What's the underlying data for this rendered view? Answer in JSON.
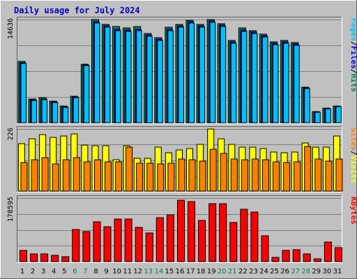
{
  "colors": {
    "background": "#c0c0c0",
    "panel": "#c0c0c0",
    "hits": "#00805c",
    "files": "#0000ff",
    "pages": "#00c0ff",
    "visits": "#ffff00",
    "sites": "#ff8000",
    "kbytes": "#ff0000",
    "weekend": "#00805c",
    "weekday": "#000000",
    "title": "#0000c0"
  },
  "chart_data": {
    "type": "bar",
    "title": "Daily usage for July 2024",
    "categories": [
      "1",
      "2",
      "3",
      "4",
      "5",
      "6",
      "7",
      "8",
      "9",
      "10",
      "11",
      "12",
      "13",
      "14",
      "15",
      "16",
      "17",
      "18",
      "19",
      "20",
      "21",
      "22",
      "23",
      "24",
      "25",
      "26",
      "27",
      "28",
      "29",
      "30",
      "31"
    ],
    "weekend_days": [
      "6",
      "7",
      "13",
      "14",
      "20",
      "21",
      "27",
      "28"
    ],
    "panels": [
      {
        "id": "hits-files-pages",
        "ymax_label": "14636",
        "ymax": 14636,
        "legend": [
          {
            "text": "Hits",
            "color_key": "hits"
          },
          {
            "text": "/",
            "color_key": "weekday"
          },
          {
            "text": "Files",
            "color_key": "files"
          },
          {
            "text": "/",
            "color_key": "weekday"
          },
          {
            "text": "Pages",
            "color_key": "pages"
          }
        ],
        "series": [
          {
            "name": "Hits",
            "color_key": "hits",
            "values": [
              8700,
              3400,
              3600,
              3100,
              2400,
              3800,
              8300,
              14636,
              13900,
              13600,
              13400,
              13600,
              12700,
              12100,
              13500,
              13900,
              14500,
              13900,
              14600,
              14000,
              11700,
              13400,
              13100,
              12600,
              11500,
              11700,
              11400,
              5000,
              1600,
              2100,
              2400
            ]
          },
          {
            "name": "Files",
            "color_key": "files",
            "values": [
              8500,
              3300,
              3400,
              3000,
              2300,
              3700,
              8200,
              14300,
              13700,
              13300,
              13200,
              13300,
              12500,
              11900,
              13300,
              13700,
              14300,
              13700,
              14400,
              13800,
              11500,
              13200,
              12900,
              12400,
              11300,
              11500,
              11200,
              4900,
              1550,
              2000,
              2300
            ]
          },
          {
            "name": "Pages",
            "color_key": "pages",
            "values": [
              8400,
              3200,
              3300,
              2900,
              2200,
              3600,
              8100,
              14100,
              13500,
              13100,
              13000,
              13100,
              12300,
              11700,
              13100,
              13500,
              14100,
              13500,
              14200,
              13600,
              11300,
              13000,
              12700,
              12200,
              11100,
              11300,
              11000,
              4800,
              1500,
              1950,
              2250
            ]
          }
        ]
      },
      {
        "id": "visits-sites",
        "ymax_label": "226",
        "ymax": 226,
        "legend": [
          {
            "text": "Visits",
            "color_key": "visits"
          },
          {
            "text": "/",
            "color_key": "weekday"
          },
          {
            "text": "Sites",
            "color_key": "sites"
          }
        ],
        "series": [
          {
            "name": "Visits",
            "color_key": "visits",
            "values": [
              172,
              191,
              205,
              196,
              201,
              208,
              168,
              164,
              164,
              114,
              166,
              120,
              120,
              161,
              140,
              150,
              154,
              169,
              226,
              190,
              171,
              161,
              159,
              154,
              143,
              140,
              141,
              176,
              161,
              161,
              200
            ]
          },
          {
            "name": "Sites",
            "color_key": "sites",
            "values": [
              105,
              114,
              123,
              99,
              113,
              123,
              106,
              115,
              106,
              106,
              159,
              102,
              102,
              98,
              101,
              116,
              115,
              108,
              153,
              137,
              116,
              115,
              116,
              115,
              106,
              105,
              106,
              163,
              118,
              110,
              116
            ]
          }
        ]
      },
      {
        "id": "kbytes",
        "ymax_label": "178595",
        "ymax": 178595,
        "legend": [
          {
            "text": "KBytes",
            "color_key": "kbytes"
          }
        ],
        "series": [
          {
            "name": "KBytes",
            "color_key": "kbytes",
            "values": [
              31000,
              21000,
              21000,
              18000,
              13000,
              90000,
              84000,
              112000,
              98000,
              120000,
              120000,
              96000,
              80000,
              123000,
              131000,
              173000,
              169000,
              115000,
              162000,
              163000,
              110000,
              147000,
              140000,
              72000,
              12000,
              32000,
              33000,
              22000,
              7000,
              55000,
              40000
            ]
          }
        ]
      }
    ]
  }
}
